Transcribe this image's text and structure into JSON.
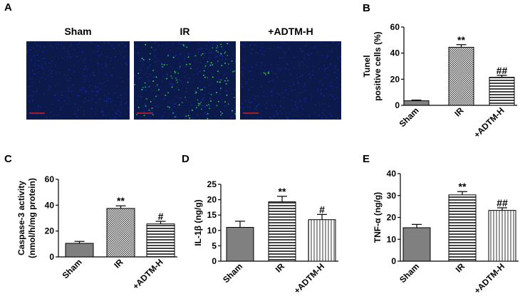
{
  "panel_letters": [
    "A",
    "B",
    "C",
    "D",
    "E"
  ],
  "micrographs": {
    "labels": [
      "Sham",
      "IR",
      "+ADTM-H"
    ],
    "background": "#0b1a4a",
    "fluorescence": "#3cf04a",
    "scale_bar": "#d02020"
  },
  "colors": {
    "sham": "#808080",
    "ir_pattern": "#444444",
    "adtm_pattern": "#9a9a9a",
    "axis": "#000000"
  },
  "chart_data": [
    {
      "panel": "B",
      "type": "bar",
      "ylabel": [
        "Tunel",
        "positive cells (%)"
      ],
      "ylim": [
        0,
        60
      ],
      "ticks": [
        0,
        20,
        40,
        60
      ],
      "categories": [
        "Sham",
        "IR",
        "+ADTM-H"
      ],
      "values": [
        3.5,
        44.5,
        21.5
      ],
      "errors": [
        0.5,
        2,
        1.5
      ],
      "annotations": [
        "",
        "**",
        "##"
      ]
    },
    {
      "panel": "C",
      "type": "bar",
      "ylabel": [
        "Caspase-3 activity",
        "(nmol/h/mg protein)"
      ],
      "ylim": [
        0,
        60
      ],
      "ticks": [
        0,
        20,
        40,
        60
      ],
      "categories": [
        "Sham",
        "IR",
        "+ADTM-H"
      ],
      "values": [
        10.5,
        37.5,
        25.5
      ],
      "errors": [
        1.5,
        2,
        2
      ],
      "annotations": [
        "",
        "**",
        "#"
      ]
    },
    {
      "panel": "D",
      "type": "bar",
      "ylabel": [
        "IL-1β (ng/g)"
      ],
      "ylim": [
        0,
        25
      ],
      "ticks": [
        0,
        5,
        10,
        15,
        20,
        25
      ],
      "categories": [
        "Sham",
        "IR",
        "+ADTM-H"
      ],
      "values": [
        11,
        19.3,
        13.5
      ],
      "errors": [
        2,
        1.8,
        1.7
      ],
      "annotations": [
        "",
        "**",
        "#"
      ]
    },
    {
      "panel": "E",
      "type": "bar",
      "ylabel": [
        "TNF-α (ng/g)"
      ],
      "ylim": [
        0,
        40
      ],
      "ticks": [
        0,
        10,
        20,
        30,
        40
      ],
      "categories": [
        "Sham",
        "IR",
        "+ADTM-H"
      ],
      "values": [
        15.3,
        30.3,
        23.2
      ],
      "errors": [
        1.5,
        1.5,
        1.2
      ],
      "annotations": [
        "",
        "**",
        "##"
      ]
    }
  ]
}
